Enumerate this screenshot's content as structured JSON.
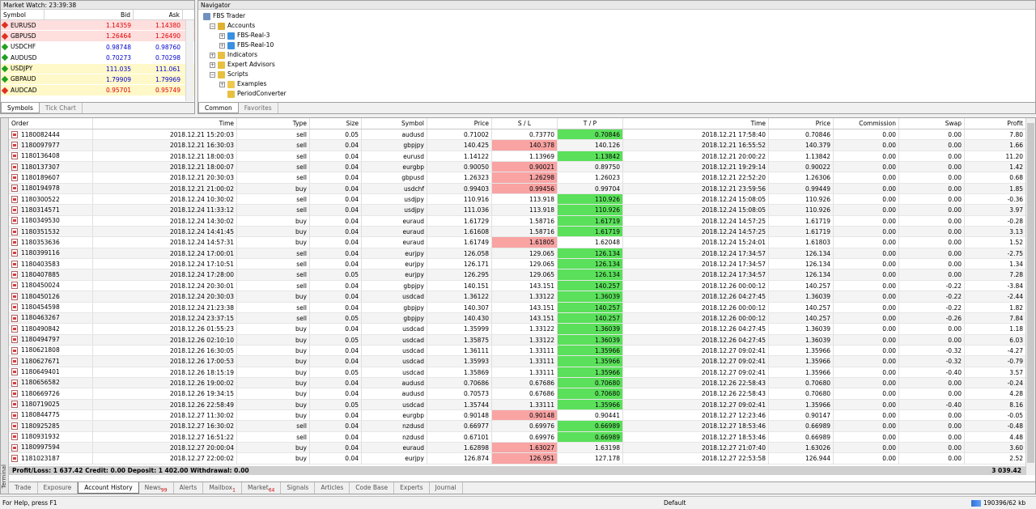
{
  "market_watch": {
    "title": "Market Watch: 23:39:38",
    "headers": [
      "Symbol",
      "Bid",
      "Ask"
    ],
    "rows": [
      {
        "symbol": "EURUSD",
        "bid": "1.14359",
        "ask": "1.14380",
        "bg": "#ffdede",
        "color": "#e00000",
        "dir": "down"
      },
      {
        "symbol": "GBPUSD",
        "bid": "1.26464",
        "ask": "1.26490",
        "bg": "#ffdede",
        "color": "#e00000",
        "dir": "down"
      },
      {
        "symbol": "USDCHF",
        "bid": "0.98748",
        "ask": "0.98760",
        "bg": "#ffffff",
        "color": "#0000d0",
        "dir": "up"
      },
      {
        "symbol": "AUDUSD",
        "bid": "0.70273",
        "ask": "0.70298",
        "bg": "#ffffff",
        "color": "#0000d0",
        "dir": "up"
      },
      {
        "symbol": "USDJPY",
        "bid": "111.035",
        "ask": "111.061",
        "bg": "#fff8c8",
        "color": "#0000d0",
        "dir": "up"
      },
      {
        "symbol": "GBPAUD",
        "bid": "1.79909",
        "ask": "1.79969",
        "bg": "#fff8c8",
        "color": "#0000d0",
        "dir": "up"
      },
      {
        "symbol": "AUDCAD",
        "bid": "0.95701",
        "ask": "0.95749",
        "bg": "#fff8c8",
        "color": "#e00000",
        "dir": "down"
      }
    ],
    "tabs": [
      "Symbols",
      "Tick Chart"
    ]
  },
  "navigator": {
    "title": "Navigator",
    "root": "FBS Trader",
    "accounts_label": "Accounts",
    "accounts": [
      "FBS-Real-3",
      "FBS-Real-10"
    ],
    "indicators": "Indicators",
    "experts": "Expert Advisors",
    "scripts": "Scripts",
    "script_children": [
      "Examples",
      "PeriodConverter"
    ],
    "tabs": [
      "Common",
      "Favorites"
    ]
  },
  "terminal": {
    "side_label": "Terminal",
    "headers": [
      "Order",
      "Time",
      "Type",
      "Size",
      "Symbol",
      "Price",
      "S / L",
      "T / P",
      "Time",
      "Price",
      "Commission",
      "Swap",
      "Profit"
    ],
    "rows": [
      [
        "1180082444",
        "2018.12.21 15:20:03",
        "sell",
        "0.05",
        "audusd",
        "0.71002",
        "0.73770",
        "0.70846",
        "2018.12.21 17:58:40",
        "0.70846",
        "0.00",
        "0.00",
        "7.80",
        "tp"
      ],
      [
        "1180097977",
        "2018.12.21 16:30:03",
        "sell",
        "0.04",
        "gbpjpy",
        "140.425",
        "140.378",
        "140.126",
        "2018.12.21 16:55:52",
        "140.379",
        "0.00",
        "0.00",
        "1.66",
        "sl"
      ],
      [
        "1180136408",
        "2018.12.21 18:00:03",
        "sell",
        "0.04",
        "eurusd",
        "1.14122",
        "1.13969",
        "1.13842",
        "2018.12.21 20:00:22",
        "1.13842",
        "0.00",
        "0.00",
        "11.20",
        "tp"
      ],
      [
        "1180137307",
        "2018.12.21 18:00:07",
        "sell",
        "0.04",
        "eurgbp",
        "0.90050",
        "0.90021",
        "0.89750",
        "2018.12.21 19:29:14",
        "0.90022",
        "0.00",
        "0.00",
        "1.42",
        "sl"
      ],
      [
        "1180189607",
        "2018.12.21 20:30:03",
        "sell",
        "0.04",
        "gbpusd",
        "1.26323",
        "1.26298",
        "1.26023",
        "2018.12.21 22:52:20",
        "1.26306",
        "0.00",
        "0.00",
        "0.68",
        "sl"
      ],
      [
        "1180194978",
        "2018.12.21 21:00:02",
        "buy",
        "0.04",
        "usdchf",
        "0.99403",
        "0.99456",
        "0.99704",
        "2018.12.21 23:59:56",
        "0.99449",
        "0.00",
        "0.00",
        "1.85",
        "sl"
      ],
      [
        "1180300522",
        "2018.12.24 10:30:02",
        "sell",
        "0.04",
        "usdjpy",
        "110.916",
        "113.918",
        "110.926",
        "2018.12.24 15:08:05",
        "110.926",
        "0.00",
        "0.00",
        "-0.36",
        "tp"
      ],
      [
        "1180314571",
        "2018.12.24 11:33:12",
        "sell",
        "0.04",
        "usdjpy",
        "111.036",
        "113.918",
        "110.926",
        "2018.12.24 15:08:05",
        "110.926",
        "0.00",
        "0.00",
        "3.97",
        "tp"
      ],
      [
        "1180349530",
        "2018.12.24 14:30:02",
        "buy",
        "0.04",
        "euraud",
        "1.61729",
        "1.58716",
        "1.61719",
        "2018.12.24 14:57:25",
        "1.61719",
        "0.00",
        "0.00",
        "-0.28",
        "tp"
      ],
      [
        "1180351532",
        "2018.12.24 14:41:45",
        "buy",
        "0.04",
        "euraud",
        "1.61608",
        "1.58716",
        "1.61719",
        "2018.12.24 14:57:25",
        "1.61719",
        "0.00",
        "0.00",
        "3.13",
        "tp"
      ],
      [
        "1180353636",
        "2018.12.24 14:57:31",
        "buy",
        "0.04",
        "euraud",
        "1.61749",
        "1.61805",
        "1.62048",
        "2018.12.24 15:24:01",
        "1.61803",
        "0.00",
        "0.00",
        "1.52",
        "sl"
      ],
      [
        "1180399116",
        "2018.12.24 17:00:01",
        "sell",
        "0.04",
        "eurjpy",
        "126.058",
        "129.065",
        "126.134",
        "2018.12.24 17:34:57",
        "126.134",
        "0.00",
        "0.00",
        "-2.75",
        "tp"
      ],
      [
        "1180403583",
        "2018.12.24 17:10:51",
        "sell",
        "0.04",
        "eurjpy",
        "126.171",
        "129.065",
        "126.134",
        "2018.12.24 17:34:57",
        "126.134",
        "0.00",
        "0.00",
        "1.34",
        "tp"
      ],
      [
        "1180407885",
        "2018.12.24 17:28:00",
        "sell",
        "0.05",
        "eurjpy",
        "126.295",
        "129.065",
        "126.134",
        "2018.12.24 17:34:57",
        "126.134",
        "0.00",
        "0.00",
        "7.28",
        "tp"
      ],
      [
        "1180450024",
        "2018.12.24 20:30:01",
        "sell",
        "0.04",
        "gbpjpy",
        "140.151",
        "143.151",
        "140.257",
        "2018.12.26 00:00:12",
        "140.257",
        "0.00",
        "-0.22",
        "-3.84",
        "tp"
      ],
      [
        "1180450126",
        "2018.12.24 20:30:03",
        "buy",
        "0.04",
        "usdcad",
        "1.36122",
        "1.33122",
        "1.36039",
        "2018.12.26 04:27:45",
        "1.36039",
        "0.00",
        "-0.22",
        "-2.44",
        "tp"
      ],
      [
        "1180454598",
        "2018.12.24 21:23:38",
        "sell",
        "0.04",
        "gbpjpy",
        "140.307",
        "143.151",
        "140.257",
        "2018.12.26 00:00:12",
        "140.257",
        "0.00",
        "-0.22",
        "1.82",
        "tp"
      ],
      [
        "1180463267",
        "2018.12.24 23:37:15",
        "sell",
        "0.05",
        "gbpjpy",
        "140.430",
        "143.151",
        "140.257",
        "2018.12.26 00:00:12",
        "140.257",
        "0.00",
        "-0.26",
        "7.84",
        "tp"
      ],
      [
        "1180490842",
        "2018.12.26 01:55:23",
        "buy",
        "0.04",
        "usdcad",
        "1.35999",
        "1.33122",
        "1.36039",
        "2018.12.26 04:27:45",
        "1.36039",
        "0.00",
        "0.00",
        "1.18",
        "tp"
      ],
      [
        "1180494797",
        "2018.12.26 02:10:10",
        "buy",
        "0.05",
        "usdcad",
        "1.35875",
        "1.33122",
        "1.36039",
        "2018.12.26 04:27:45",
        "1.36039",
        "0.00",
        "0.00",
        "6.03",
        "tp"
      ],
      [
        "1180621808",
        "2018.12.26 16:30:05",
        "buy",
        "0.04",
        "usdcad",
        "1.36111",
        "1.33111",
        "1.35966",
        "2018.12.27 09:02:41",
        "1.35966",
        "0.00",
        "-0.32",
        "-4.27",
        "tp"
      ],
      [
        "1180627671",
        "2018.12.26 17:00:53",
        "buy",
        "0.04",
        "usdcad",
        "1.35993",
        "1.33111",
        "1.35966",
        "2018.12.27 09:02:41",
        "1.35966",
        "0.00",
        "-0.32",
        "-0.79",
        "tp"
      ],
      [
        "1180649401",
        "2018.12.26 18:15:19",
        "buy",
        "0.05",
        "usdcad",
        "1.35869",
        "1.33111",
        "1.35966",
        "2018.12.27 09:02:41",
        "1.35966",
        "0.00",
        "-0.40",
        "3.57",
        "tp"
      ],
      [
        "1180656582",
        "2018.12.26 19:00:02",
        "buy",
        "0.04",
        "audusd",
        "0.70686",
        "0.67686",
        "0.70680",
        "2018.12.26 22:58:43",
        "0.70680",
        "0.00",
        "0.00",
        "-0.24",
        "tp"
      ],
      [
        "1180669726",
        "2018.12.26 19:34:15",
        "buy",
        "0.04",
        "audusd",
        "0.70573",
        "0.67686",
        "0.70680",
        "2018.12.26 22:58:43",
        "0.70680",
        "0.00",
        "0.00",
        "4.28",
        "tp"
      ],
      [
        "1180719025",
        "2018.12.26 22:58:49",
        "buy",
        "0.05",
        "usdcad",
        "1.35744",
        "1.33111",
        "1.35966",
        "2018.12.27 09:02:41",
        "1.35966",
        "0.00",
        "-0.40",
        "8.16",
        "tp"
      ],
      [
        "1180844775",
        "2018.12.27 11:30:02",
        "buy",
        "0.04",
        "eurgbp",
        "0.90148",
        "0.90148",
        "0.90441",
        "2018.12.27 12:23:46",
        "0.90147",
        "0.00",
        "0.00",
        "-0.05",
        "sl"
      ],
      [
        "1180925285",
        "2018.12.27 16:30:02",
        "sell",
        "0.04",
        "nzdusd",
        "0.66977",
        "0.69976",
        "0.66989",
        "2018.12.27 18:53:46",
        "0.66989",
        "0.00",
        "0.00",
        "-0.48",
        "tp"
      ],
      [
        "1180931932",
        "2018.12.27 16:51:22",
        "sell",
        "0.04",
        "nzdusd",
        "0.67101",
        "0.69976",
        "0.66989",
        "2018.12.27 18:53:46",
        "0.66989",
        "0.00",
        "0.00",
        "4.48",
        "tp"
      ],
      [
        "1180997594",
        "2018.12.27 20:00:04",
        "buy",
        "0.04",
        "euraud",
        "1.62898",
        "1.63027",
        "1.63198",
        "2018.12.27 21:07:40",
        "1.63026",
        "0.00",
        "0.00",
        "3.60",
        "sl"
      ],
      [
        "1181023187",
        "2018.12.27 22:00:02",
        "buy",
        "0.04",
        "eurjpy",
        "126.874",
        "126.951",
        "127.178",
        "2018.12.27 22:53:58",
        "126.944",
        "0.00",
        "0.00",
        "2.52",
        "sl"
      ]
    ],
    "summary_left": "Profit/Loss: 1 637.42  Credit: 0.00  Deposit: 1 402.00  Withdrawal: 0.00",
    "summary_right": "3 039.42",
    "tabs": [
      {
        "label": "Trade",
        "badge": ""
      },
      {
        "label": "Exposure",
        "badge": ""
      },
      {
        "label": "Account History",
        "badge": ""
      },
      {
        "label": "News",
        "badge": "99"
      },
      {
        "label": "Alerts",
        "badge": ""
      },
      {
        "label": "Mailbox",
        "badge": "1"
      },
      {
        "label": "Market",
        "badge": "64"
      },
      {
        "label": "Signals",
        "badge": ""
      },
      {
        "label": "Articles",
        "badge": ""
      },
      {
        "label": "Code Base",
        "badge": ""
      },
      {
        "label": "Experts",
        "badge": ""
      },
      {
        "label": "Journal",
        "badge": ""
      }
    ],
    "active_tab": "Account History"
  },
  "status": {
    "help": "For Help, press F1",
    "profile": "Default",
    "traffic": "190396/62 kb"
  },
  "colors": {
    "sl_hit": "#f9a3a3",
    "tp_hit": "#5ae05a"
  }
}
